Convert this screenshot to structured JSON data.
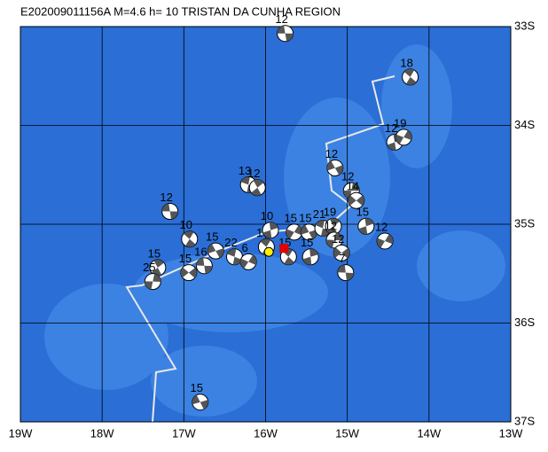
{
  "map": {
    "title": "E202009011156A M=4.6 h= 10 TRISTAN DA CUNHA REGION",
    "lonlim": [
      -19,
      -13
    ],
    "latlim": [
      -33,
      -37
    ],
    "lon_ticks": [
      {
        "value": -19,
        "label": "19W"
      },
      {
        "value": -18,
        "label": "18W"
      },
      {
        "value": -17,
        "label": "17W"
      },
      {
        "value": -16,
        "label": "16W"
      },
      {
        "value": -15,
        "label": "15W"
      },
      {
        "value": -14,
        "label": "14W"
      },
      {
        "value": -13,
        "label": "13W"
      }
    ],
    "lat_ticks": [
      {
        "value": -33,
        "label": "33S"
      },
      {
        "value": -34,
        "label": "34S"
      },
      {
        "value": -35,
        "label": "35S"
      },
      {
        "value": -36,
        "label": "36S"
      },
      {
        "value": -37,
        "label": "37S"
      }
    ],
    "events": [
      {
        "lon": -15.76,
        "lat": -33.07,
        "depth": 12
      },
      {
        "lon": -14.23,
        "lat": -33.51,
        "depth": 18
      },
      {
        "lon": -14.42,
        "lat": -34.17,
        "depth": 12
      },
      {
        "lon": -14.31,
        "lat": -34.12,
        "depth": 19
      },
      {
        "lon": -15.15,
        "lat": -34.43,
        "depth": 12
      },
      {
        "lon": -16.21,
        "lat": -34.6,
        "depth": 13
      },
      {
        "lon": -16.1,
        "lat": -34.63,
        "depth": 12
      },
      {
        "lon": -14.95,
        "lat": -34.66,
        "depth": 12
      },
      {
        "lon": -14.89,
        "lat": -34.76,
        "depth": 14
      },
      {
        "lon": -17.17,
        "lat": -34.87,
        "depth": 12
      },
      {
        "lon": -16.93,
        "lat": -35.15,
        "depth": 10
      },
      {
        "lon": -14.77,
        "lat": -35.02,
        "depth": 15
      },
      {
        "lon": -14.54,
        "lat": -35.17,
        "depth": 12
      },
      {
        "lon": -16.61,
        "lat": -35.27,
        "depth": 15
      },
      {
        "lon": -16.38,
        "lat": -35.33,
        "depth": 22
      },
      {
        "lon": -17.32,
        "lat": -35.44,
        "depth": 15
      },
      {
        "lon": -17.38,
        "lat": -35.58,
        "depth": 25
      },
      {
        "lon": -16.94,
        "lat": -35.49,
        "depth": 15
      },
      {
        "lon": -16.75,
        "lat": -35.42,
        "depth": 16
      },
      {
        "lon": -15.99,
        "lat": -35.23,
        "depth": 15
      },
      {
        "lon": -15.94,
        "lat": -35.06,
        "depth": 10
      },
      {
        "lon": -15.65,
        "lat": -35.08,
        "depth": 15
      },
      {
        "lon": -15.47,
        "lat": -35.08,
        "depth": 15
      },
      {
        "lon": -15.3,
        "lat": -35.04,
        "depth": 21
      },
      {
        "lon": -15.17,
        "lat": -35.02,
        "depth": 19
      },
      {
        "lon": -15.16,
        "lat": -35.16,
        "depth": 12
      },
      {
        "lon": -15.07,
        "lat": -35.29,
        "depth": 12
      },
      {
        "lon": -15.02,
        "lat": -35.49,
        "depth": 7
      },
      {
        "lon": -15.72,
        "lat": -35.33,
        "depth": 15
      },
      {
        "lon": -15.45,
        "lat": -35.33,
        "depth": 15
      },
      {
        "lon": -16.21,
        "lat": -35.38,
        "depth": 6
      },
      {
        "lon": -16.8,
        "lat": -36.8,
        "depth": 15
      }
    ],
    "main_event": {
      "lon": -15.96,
      "lat": -35.28
    }
  }
}
